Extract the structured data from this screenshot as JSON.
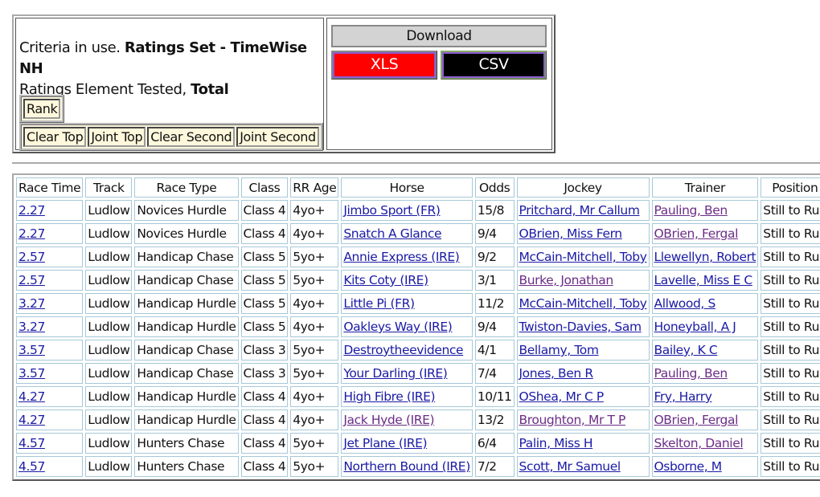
{
  "criteria": {
    "prefix": "Criteria in use. ",
    "ratings_set": "Ratings Set - TimeWise NH",
    "element_prefix": "Ratings Element Tested, ",
    "element": "Total"
  },
  "buttons": {
    "rank": "Rank",
    "clear_top": "Clear Top",
    "joint_top": "Joint Top",
    "clear_second": "Clear Second",
    "joint_second": "Joint Second"
  },
  "download": {
    "title": "Download",
    "xls": "XLS",
    "csv": "CSV"
  },
  "table": {
    "headers": [
      "Race Time",
      "Track",
      "Race Type",
      "Class",
      "RR Age",
      "Horse",
      "Odds",
      "Jockey",
      "Trainer",
      "Position"
    ],
    "rows": [
      [
        "2.27",
        "Ludlow",
        "Novices Hurdle",
        "Class 4",
        "4yo+",
        "Jimbo Sport (FR)",
        "15/8",
        "Pritchard, Mr Callum",
        "Pauling, Ben",
        "Still to Run"
      ],
      [
        "2.27",
        "Ludlow",
        "Novices Hurdle",
        "Class 4",
        "4yo+",
        "Snatch A Glance",
        "9/4",
        "OBrien, Miss Fern",
        "OBrien, Fergal",
        "Still to Run"
      ],
      [
        "2.57",
        "Ludlow",
        "Handicap Chase",
        "Class 5",
        "5yo+",
        "Annie Express (IRE)",
        "9/2",
        "McCain-Mitchell, Toby",
        "Llewellyn, Robert",
        "Still to Run"
      ],
      [
        "2.57",
        "Ludlow",
        "Handicap Chase",
        "Class 5",
        "5yo+",
        "Kits Coty (IRE)",
        "3/1",
        "Burke, Jonathan",
        "Lavelle, Miss E C",
        "Still to Run"
      ],
      [
        "3.27",
        "Ludlow",
        "Handicap Hurdle",
        "Class 5",
        "4yo+",
        "Little Pi (FR)",
        "11/2",
        "McCain-Mitchell, Toby",
        "Allwood, S",
        "Still to Run"
      ],
      [
        "3.27",
        "Ludlow",
        "Handicap Hurdle",
        "Class 5",
        "4yo+",
        "Oakleys Way (IRE)",
        "9/4",
        "Twiston-Davies, Sam",
        "Honeyball, A J",
        "Still to Run"
      ],
      [
        "3.57",
        "Ludlow",
        "Handicap Chase",
        "Class 3",
        "5yo+",
        "Destroytheevidence",
        "4/1",
        "Bellamy, Tom",
        "Bailey, K C",
        "Still to Run"
      ],
      [
        "3.57",
        "Ludlow",
        "Handicap Chase",
        "Class 3",
        "5yo+",
        "Your Darling (IRE)",
        "7/4",
        "Jones, Ben R",
        "Pauling, Ben",
        "Still to Run"
      ],
      [
        "4.27",
        "Ludlow",
        "Handicap Hurdle",
        "Class 4",
        "4yo+",
        "High Fibre (IRE)",
        "10/11",
        "OShea, Mr C P",
        "Fry, Harry",
        "Still to Run"
      ],
      [
        "4.27",
        "Ludlow",
        "Handicap Hurdle",
        "Class 4",
        "4yo+",
        "Jack Hyde (IRE)",
        "13/2",
        "Broughton, Mr T P",
        "OBrien, Fergal",
        "Still to Run"
      ],
      [
        "4.57",
        "Ludlow",
        "Hunters Chase",
        "Class 4",
        "5yo+",
        "Jet Plane (IRE)",
        "6/4",
        "Palin, Miss H",
        "Skelton, Daniel",
        "Still to Run"
      ],
      [
        "4.57",
        "Ludlow",
        "Hunters Chase",
        "Class 4",
        "5yo+",
        "Northern Bound (IRE)",
        "7/2",
        "Scott, Mr Samuel",
        "Osborne, M",
        "Still to Run"
      ]
    ],
    "visited": [
      [
        0,
        8
      ],
      [
        1,
        8
      ],
      [
        3,
        7
      ],
      [
        7,
        8
      ],
      [
        9,
        5
      ],
      [
        9,
        7
      ],
      [
        9,
        8
      ],
      [
        10,
        8
      ]
    ]
  },
  "colors": {
    "link": "#1a1aa6",
    "visited_link": "#6b2c87",
    "xls": "#ff0000",
    "csv": "#000000"
  }
}
